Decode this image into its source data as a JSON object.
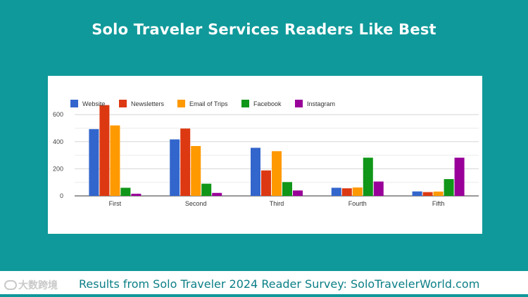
{
  "header": {
    "title": "Solo Traveler Services Readers Like Best"
  },
  "footer": {
    "caption": "Results from Solo Traveler 2024 Reader Survey: SoloTravelerWorld.com",
    "logo_text": "大数跨境"
  },
  "chart_data": {
    "type": "bar",
    "categories": [
      "First",
      "Second",
      "Third",
      "Fourth",
      "Fifth"
    ],
    "series": [
      {
        "name": "Website",
        "color": "#3366cc",
        "values": [
          493,
          417,
          355,
          60,
          33
        ]
      },
      {
        "name": "Newsletters",
        "color": "#dc3912",
        "values": [
          670,
          497,
          188,
          56,
          28
        ]
      },
      {
        "name": "Email of Trips",
        "color": "#ff9900",
        "values": [
          520,
          368,
          330,
          62,
          32
        ]
      },
      {
        "name": "Facebook",
        "color": "#109618",
        "values": [
          60,
          90,
          102,
          282,
          124
        ]
      },
      {
        "name": "Instagram",
        "color": "#990099",
        "values": [
          16,
          22,
          40,
          106,
          282
        ]
      }
    ],
    "yticks": [
      0,
      200,
      400,
      600
    ],
    "ylim": [
      0,
      680
    ],
    "grid": true,
    "legend": "top-left"
  }
}
